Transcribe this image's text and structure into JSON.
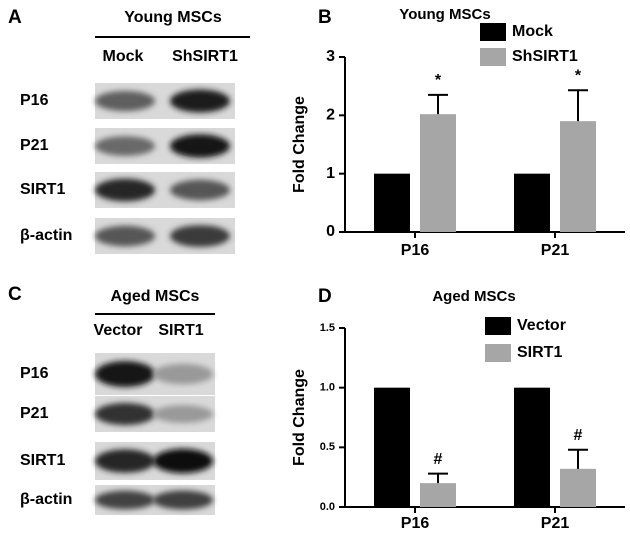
{
  "blots": [
    {
      "panel": "A",
      "title": "Young MSCs",
      "lanes": [
        "Mock",
        "ShSIRT1"
      ],
      "rows": [
        "P16",
        "P21",
        "SIRT1",
        "β-actin"
      ]
    },
    {
      "panel": "C",
      "title": "Aged MSCs",
      "lanes": [
        "Vector",
        "SIRT1"
      ],
      "rows": [
        "P16",
        "P21",
        "SIRT1",
        "β-actin"
      ]
    }
  ],
  "chart_data": [
    {
      "type": "bar",
      "panel": "B",
      "title": "Young MSCs",
      "ylabel": "Fold Change",
      "categories": [
        "P16",
        "P21"
      ],
      "series": [
        {
          "name": "Mock",
          "color": "#000000",
          "values": [
            1,
            1
          ]
        },
        {
          "name": "ShSIRT1",
          "color": "#a6a6a6",
          "values": [
            2.02,
            1.9
          ],
          "errors": [
            0.33,
            0.53
          ]
        }
      ],
      "annotations": [
        {
          "category": "P16",
          "series": "ShSIRT1",
          "text": "*"
        },
        {
          "category": "P21",
          "series": "ShSIRT1",
          "text": "*"
        }
      ],
      "ylim": [
        0,
        3
      ],
      "yticks": [
        0,
        1,
        2,
        3
      ],
      "legend": "upper right"
    },
    {
      "type": "bar",
      "panel": "D",
      "title": "Aged MSCs",
      "ylabel": "Fold Change",
      "categories": [
        "P16",
        "P21"
      ],
      "series": [
        {
          "name": "Vector",
          "color": "#000000",
          "values": [
            1,
            1
          ]
        },
        {
          "name": "SIRT1",
          "color": "#a6a6a6",
          "values": [
            0.2,
            0.32
          ],
          "errors": [
            0.08,
            0.16
          ]
        }
      ],
      "annotations": [
        {
          "category": "P16",
          "series": "SIRT1",
          "text": "#"
        },
        {
          "category": "P21",
          "series": "SIRT1",
          "text": "#"
        }
      ],
      "ylim": [
        0,
        1.5
      ],
      "yticks": [
        {
          "value": 0,
          "label": "0.0"
        },
        {
          "value": 0.5,
          "label": "0.5"
        },
        {
          "value": 1,
          "label": "1.0"
        },
        {
          "value": 1.5,
          "label": "1.5"
        }
      ],
      "legend": "upper right"
    }
  ]
}
